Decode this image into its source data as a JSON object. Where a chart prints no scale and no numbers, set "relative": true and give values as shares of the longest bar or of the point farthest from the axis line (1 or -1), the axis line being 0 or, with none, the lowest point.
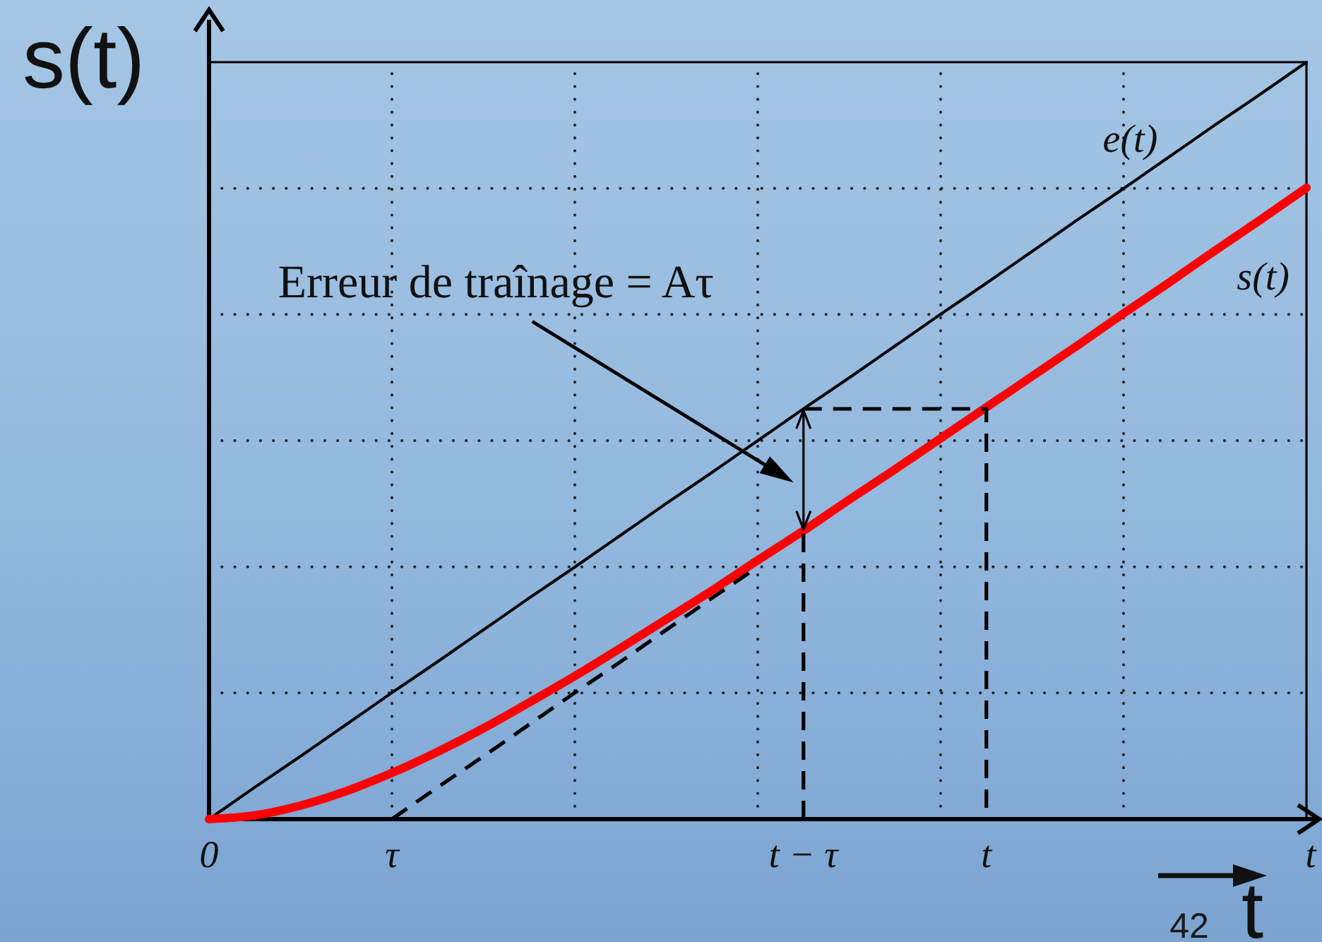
{
  "chart_data": {
    "type": "line",
    "relative": true,
    "categories": [
      "0",
      null,
      null,
      null,
      "τ",
      null,
      null,
      null,
      null,
      null,
      null,
      null,
      null,
      "t − τ",
      null,
      null,
      null,
      "t",
      null,
      null,
      null,
      null,
      null,
      null,
      null
    ],
    "grid": true,
    "tick_labels": "x",
    "xlabel": "t",
    "ylabel": "s(t)",
    "series": [
      {
        "name": "e(t)",
        "color": "#000000",
        "values": [
          0,
          0.042,
          0.083,
          0.125,
          0.167,
          0.208,
          0.25,
          0.292,
          0.333,
          0.375,
          0.417,
          0.458,
          0.5,
          0.542,
          0.583,
          0.625,
          0.667,
          0.708,
          0.75,
          0.792,
          0.833,
          0.875,
          0.917,
          0.958,
          1
        ]
      },
      {
        "name": "s(t)",
        "color": "#ff0000",
        "values": [
          0,
          0.005,
          0.018,
          0.037,
          0.061,
          0.089,
          0.12,
          0.154,
          0.189,
          0.226,
          0.264,
          0.302,
          0.342,
          0.381,
          0.422,
          0.462,
          0.503,
          0.544,
          0.585,
          0.626,
          0.668,
          0.709,
          0.751,
          0.792,
          0.834
        ]
      },
      {
        "color": "#000000",
        "line_style": "dashed",
        "values": [
          null,
          null,
          null,
          null,
          0,
          0.042,
          0.083,
          0.125,
          0.167,
          0.208,
          0.25,
          0.292,
          0.333,
          null,
          null,
          null,
          null,
          null,
          null,
          null,
          null,
          null,
          null,
          null,
          null
        ]
      },
      {
        "color": "#000000",
        "line_style": "dashed",
        "x": [
          "t − τ",
          "t − τ",
          "t − τ",
          "t − τ",
          "t",
          "t"
        ],
        "values": [
          0,
          0.381,
          null,
          0.542,
          0.542,
          0
        ]
      }
    ],
    "annotations": [
      "Erreur de traînage = Aτ",
      "t",
      "42"
    ]
  }
}
